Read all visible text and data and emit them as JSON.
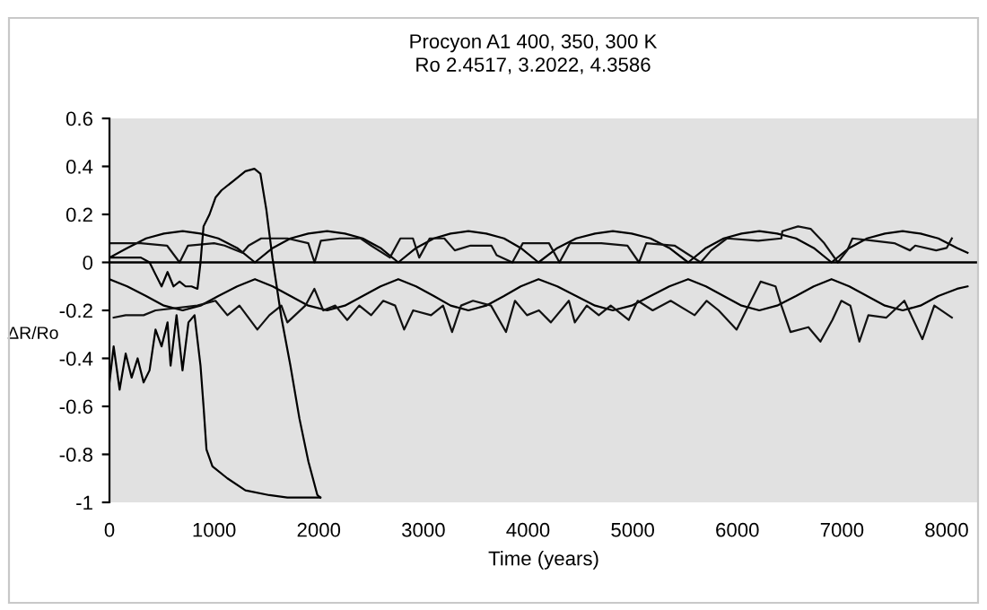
{
  "chart_data": {
    "type": "line",
    "title": "Procyon A1 400, 350, 300 K",
    "subtitle": "Ro 2.4517, 3.2022, 4.3586",
    "xlabel": "Time (years)",
    "ylabel": "ΔR/Ro",
    "xlim": [
      0,
      8300
    ],
    "xticks": [
      0,
      1000,
      2000,
      3000,
      4000,
      5000,
      6000,
      7000,
      8000
    ],
    "ylim": [
      -1,
      0.6
    ],
    "yticks": [
      -1,
      -0.8,
      -0.6,
      -0.4,
      -0.2,
      0,
      0.2,
      0.4,
      0.6
    ],
    "ref_lines": [
      {
        "axis": "y",
        "value": 0,
        "color": "#000000"
      }
    ],
    "series": [
      {
        "color": "#000000",
        "x": [
          0,
          170,
          350,
          520,
          700,
          870,
          1040,
          1220,
          1390,
          1560,
          1730,
          1900,
          2080,
          2250,
          2420,
          2590,
          2760,
          2930,
          3100,
          3260,
          3430,
          3600,
          3770,
          3930,
          4100,
          4280,
          4460,
          4640,
          4810,
          4990,
          5170,
          5350,
          5530,
          5700,
          5870,
          6040,
          6210,
          6380,
          6560,
          6730,
          6900,
          7070,
          7240,
          7410,
          7580,
          7750,
          7920,
          8100,
          8200
        ],
        "values": [
          0.02,
          0.06,
          0.1,
          0.12,
          0.13,
          0.12,
          0.1,
          0.06,
          0.0,
          0.06,
          0.1,
          0.12,
          0.13,
          0.12,
          0.1,
          0.06,
          0.0,
          0.06,
          0.1,
          0.12,
          0.13,
          0.12,
          0.1,
          0.06,
          0.0,
          0.06,
          0.1,
          0.12,
          0.13,
          0.12,
          0.1,
          0.06,
          0.0,
          0.06,
          0.1,
          0.12,
          0.13,
          0.12,
          0.1,
          0.06,
          0.0,
          0.06,
          0.1,
          0.12,
          0.13,
          0.12,
          0.1,
          0.06,
          0.04
        ]
      },
      {
        "color": "#000000",
        "x": [
          0,
          170,
          350,
          520,
          700,
          870,
          1040,
          1220,
          1390,
          1560,
          1730,
          1900,
          2080,
          2250,
          2420,
          2590,
          2760,
          2930,
          3100,
          3260,
          3430,
          3600,
          3770,
          3930,
          4100,
          4280,
          4460,
          4640,
          4810,
          4990,
          5170,
          5350,
          5530,
          5700,
          5870,
          6040,
          6210,
          6380,
          6560,
          6730,
          6900,
          7070,
          7240,
          7410,
          7580,
          7750,
          7920,
          8100,
          8200
        ],
        "values": [
          -0.07,
          -0.1,
          -0.14,
          -0.18,
          -0.2,
          -0.18,
          -0.14,
          -0.1,
          -0.07,
          -0.1,
          -0.14,
          -0.18,
          -0.2,
          -0.18,
          -0.14,
          -0.1,
          -0.07,
          -0.1,
          -0.14,
          -0.18,
          -0.2,
          -0.18,
          -0.14,
          -0.1,
          -0.07,
          -0.1,
          -0.14,
          -0.18,
          -0.2,
          -0.18,
          -0.14,
          -0.1,
          -0.07,
          -0.1,
          -0.14,
          -0.18,
          -0.2,
          -0.18,
          -0.14,
          -0.1,
          -0.07,
          -0.1,
          -0.14,
          -0.18,
          -0.2,
          -0.18,
          -0.14,
          -0.11,
          -0.1
        ]
      },
      {
        "color": "#111111",
        "x": [
          0,
          300,
          550,
          670,
          750,
          1000,
          1100,
          1270,
          1330,
          1450,
          1700,
          1900,
          1960,
          2020,
          2200,
          2400,
          2500,
          2680,
          2780,
          2900,
          2960,
          3060,
          3200,
          3300,
          3450,
          3650,
          3700,
          3850,
          3950,
          4100,
          4200,
          4300,
          4400,
          4700,
          4950,
          5060,
          5130,
          5400,
          5650,
          5750,
          5900,
          6200,
          6420,
          6430,
          6580,
          6700,
          6830,
          6960,
          7050,
          7100,
          7300,
          7500,
          7650,
          7700,
          7900,
          8000,
          8050
        ],
        "values": [
          0.08,
          0.08,
          0.07,
          0.0,
          0.07,
          0.08,
          0.07,
          0.04,
          0.07,
          0.1,
          0.1,
          0.08,
          0.0,
          0.09,
          0.1,
          0.1,
          0.07,
          0.02,
          0.1,
          0.1,
          0.02,
          0.1,
          0.1,
          0.05,
          0.07,
          0.07,
          0.03,
          0.0,
          0.08,
          0.08,
          0.08,
          0.0,
          0.08,
          0.08,
          0.07,
          0.0,
          0.08,
          0.07,
          0.0,
          0.05,
          0.1,
          0.09,
          0.1,
          0.13,
          0.15,
          0.14,
          0.08,
          0.0,
          0.05,
          0.1,
          0.09,
          0.08,
          0.05,
          0.07,
          0.05,
          0.06,
          0.1
        ]
      },
      {
        "color": "#111111",
        "x": [
          40,
          155,
          326,
          440,
          840,
          1013,
          1127,
          1242,
          1413,
          1528,
          1643,
          1700,
          1872,
          1958,
          2043,
          2158,
          2272,
          2387,
          2501,
          2616,
          2730,
          2816,
          2902,
          3073,
          3188,
          3274,
          3360,
          3474,
          3646,
          3789,
          3875,
          3990,
          4104,
          4218,
          4390,
          4447,
          4561,
          4676,
          4790,
          4962,
          5048,
          5191,
          5363,
          5592,
          5707,
          5821,
          5993,
          6107,
          6222,
          6365,
          6421,
          6508,
          6679,
          6794,
          6908,
          6994,
          7080,
          7166,
          7252,
          7424,
          7596,
          7768,
          7882,
          8050
        ],
        "values": [
          -0.23,
          -0.22,
          -0.22,
          -0.2,
          -0.18,
          -0.16,
          -0.22,
          -0.18,
          -0.28,
          -0.22,
          -0.18,
          -0.25,
          -0.18,
          -0.11,
          -0.2,
          -0.18,
          -0.24,
          -0.18,
          -0.22,
          -0.16,
          -0.18,
          -0.28,
          -0.2,
          -0.22,
          -0.18,
          -0.29,
          -0.18,
          -0.16,
          -0.18,
          -0.29,
          -0.16,
          -0.22,
          -0.2,
          -0.25,
          -0.16,
          -0.25,
          -0.18,
          -0.22,
          -0.18,
          -0.24,
          -0.16,
          -0.2,
          -0.16,
          -0.22,
          -0.16,
          -0.2,
          -0.28,
          -0.18,
          -0.08,
          -0.1,
          -0.18,
          -0.29,
          -0.27,
          -0.33,
          -0.24,
          -0.16,
          -0.18,
          -0.33,
          -0.22,
          -0.23,
          -0.16,
          -0.32,
          -0.18,
          -0.23
        ]
      },
      {
        "color": "#000000",
        "x": [
          0,
          40,
          97,
          155,
          212,
          269,
          326,
          383,
          440,
          498,
          555,
          584,
          641,
          698,
          755,
          813,
          870,
          899,
          927,
          984,
          1127,
          1299,
          1528,
          1700,
          2015
        ],
        "values": [
          -0.5,
          -0.35,
          -0.53,
          -0.38,
          -0.48,
          -0.4,
          -0.5,
          -0.45,
          -0.28,
          -0.35,
          -0.25,
          -0.43,
          -0.22,
          -0.45,
          -0.25,
          -0.22,
          -0.43,
          -0.6,
          -0.78,
          -0.85,
          -0.9,
          -0.95,
          -0.97,
          -0.98,
          -0.98
        ]
      },
      {
        "color": "#000000",
        "x": [
          0,
          300,
          383,
          440,
          498,
          555,
          612,
          670,
          727,
          784,
          841,
          870,
          899,
          956,
          1013,
          1070,
          1185,
          1299,
          1385,
          1442,
          1499,
          1557,
          1643,
          1729,
          1815,
          1901,
          1987,
          2015
        ],
        "values": [
          0.02,
          0.02,
          0.0,
          -0.05,
          -0.1,
          -0.04,
          -0.1,
          -0.08,
          -0.1,
          -0.1,
          -0.11,
          0.0,
          0.15,
          0.2,
          0.27,
          0.3,
          0.34,
          0.38,
          0.39,
          0.37,
          0.22,
          0.02,
          -0.23,
          -0.43,
          -0.65,
          -0.83,
          -0.97,
          -0.98
        ]
      }
    ]
  }
}
